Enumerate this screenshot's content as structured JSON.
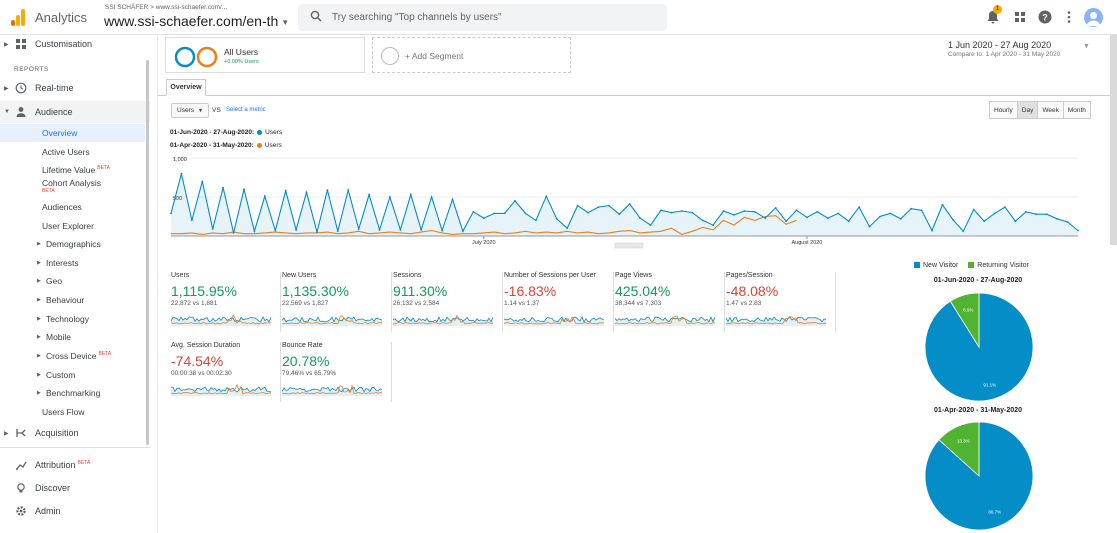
{
  "header": {
    "app_name": "Analytics",
    "account_line": "SSI SCHÄFER > www.ssi-schaefer.com/...",
    "property": "www.ssi-schaefer.com/en-th",
    "search_placeholder": "Try searching \"Top channels by users\"",
    "notification_count": "1",
    "icons": [
      "bell-icon",
      "apps-grid-icon",
      "help-icon",
      "more-vert-icon"
    ]
  },
  "sidebar": {
    "customisation": "Customisation",
    "reports_label": "REPORTS",
    "realtime": "Real-time",
    "audience": "Audience",
    "audience_items": [
      {
        "label": "Overview"
      },
      {
        "label": "Active Users"
      },
      {
        "label": "Lifetime Value",
        "beta": "BETA"
      },
      {
        "label": "Cohort Analysis",
        "beta": "BETA"
      },
      {
        "label": "Audiences"
      },
      {
        "label": "User Explorer"
      },
      {
        "label": "Demographics"
      },
      {
        "label": "Interests"
      },
      {
        "label": "Geo"
      },
      {
        "label": "Behaviour"
      },
      {
        "label": "Technology"
      },
      {
        "label": "Mobile"
      },
      {
        "label": "Cross Device",
        "beta": "BETA"
      },
      {
        "label": "Custom"
      },
      {
        "label": "Benchmarking"
      },
      {
        "label": "Users Flow"
      }
    ],
    "acquisition": "Acquisition",
    "attribution": "Attribution",
    "attribution_beta": "BETA",
    "discover": "Discover",
    "admin": "Admin"
  },
  "segments": {
    "name": "All Users",
    "pct": "+0.00% Users",
    "add_label": "+ Add Segment"
  },
  "date": {
    "range": "1 Jun 2020 - 27 Aug 2020",
    "compare": "Compare to: 1 Apr 2020 - 31 May 2020"
  },
  "tabs": {
    "overview": "Overview"
  },
  "controls": {
    "metric": "Users",
    "vs": "VS",
    "select_metric": "Select a metric",
    "granularity": [
      "Hourly",
      "Day",
      "Week",
      "Month"
    ],
    "active_granularity": "Day"
  },
  "legend": {
    "row1_dates": "01-Jun-2020 - 27-Aug-2020:",
    "row1_metric": "Users",
    "row2_dates": "01-Apr-2020 - 31-May-2020:",
    "row2_metric": "Users"
  },
  "colors": {
    "current": "#058dc7",
    "previous": "#ed7e17",
    "new_visitor": "#058dc7",
    "returning_visitor": "#50b432"
  },
  "chart_data": {
    "type": "line",
    "ylim": [
      0,
      1000
    ],
    "y_ticks": [
      "1,000",
      "500"
    ],
    "x_ticks": [
      "July 2020",
      "August 2020"
    ],
    "series": [
      {
        "name": "Users",
        "period": "01-Jun-2020 - 27-Aug-2020",
        "values": [
          290,
          800,
          200,
          700,
          90,
          620,
          40,
          600,
          60,
          510,
          70,
          580,
          80,
          560,
          50,
          590,
          60,
          590,
          90,
          530,
          80,
          500,
          80,
          530,
          80,
          500,
          70,
          470,
          60,
          310,
          230,
          290,
          290,
          450,
          290,
          200,
          510,
          220,
          100,
          390,
          300,
          370,
          390,
          280,
          410,
          230,
          140,
          330,
          300,
          320,
          300,
          200,
          140,
          320,
          270,
          320,
          310,
          230,
          360,
          190,
          330,
          240,
          310,
          230,
          290,
          190,
          370,
          120,
          250,
          290,
          220,
          350,
          330,
          70,
          400,
          210,
          60,
          340,
          190,
          290,
          370,
          190,
          310,
          280,
          280,
          220,
          180,
          70
        ]
      },
      {
        "name": "Users",
        "period": "01-Apr-2020 - 31-May-2020",
        "values": [
          30,
          30,
          40,
          20,
          40,
          30,
          50,
          30,
          30,
          40,
          50,
          40,
          30,
          40,
          40,
          50,
          30,
          40,
          60,
          30,
          40,
          50,
          40,
          30,
          50,
          70,
          40,
          20,
          30,
          30,
          40,
          50,
          30,
          40,
          60,
          40,
          50,
          40,
          60,
          40,
          50,
          30,
          40,
          60,
          70,
          40,
          50,
          60,
          100,
          20,
          60,
          110,
          80,
          200,
          140,
          240,
          200,
          250,
          260,
          150,
          200
        ]
      }
    ]
  },
  "scorecards": [
    {
      "title": "Users",
      "value": "1,115.95%",
      "sub": "22,872 vs 1,881",
      "trend": "pos"
    },
    {
      "title": "New Users",
      "value": "1,135.30%",
      "sub": "22,569 vs 1,827",
      "trend": "pos"
    },
    {
      "title": "Sessions",
      "value": "911.30%",
      "sub": "26,132 vs 2,584",
      "trend": "pos"
    },
    {
      "title": "Number of Sessions per User",
      "value": "-16.83%",
      "sub": "1.14 vs 1.37",
      "trend": "neg"
    },
    {
      "title": "Page Views",
      "value": "425.04%",
      "sub": "38,344 vs 7,303",
      "trend": "pos"
    },
    {
      "title": "Pages/Session",
      "value": "-48.08%",
      "sub": "1.47 vs 2.83",
      "trend": "neg"
    },
    {
      "title": "Avg. Session Duration",
      "value": "-74.54%",
      "sub": "00:00:38 vs 00:02:30",
      "trend": "neg"
    },
    {
      "title": "Bounce Rate",
      "value": "20.78%",
      "sub": "79.46% vs 65.79%",
      "trend": "pos"
    }
  ],
  "pies": {
    "legend": [
      "New Visitor",
      "Returning Visitor"
    ],
    "charts": [
      {
        "title": "01-Jun-2020 - 27-Aug-2020",
        "new_pct": 91.1,
        "ret_pct": 8.9,
        "new_label": "91.1%",
        "ret_label": "8.9%"
      },
      {
        "title": "01-Apr-2020 - 31-May-2020",
        "new_pct": 86.7,
        "ret_pct": 13.3,
        "new_label": "86.7%",
        "ret_label": "13.3%"
      }
    ]
  }
}
